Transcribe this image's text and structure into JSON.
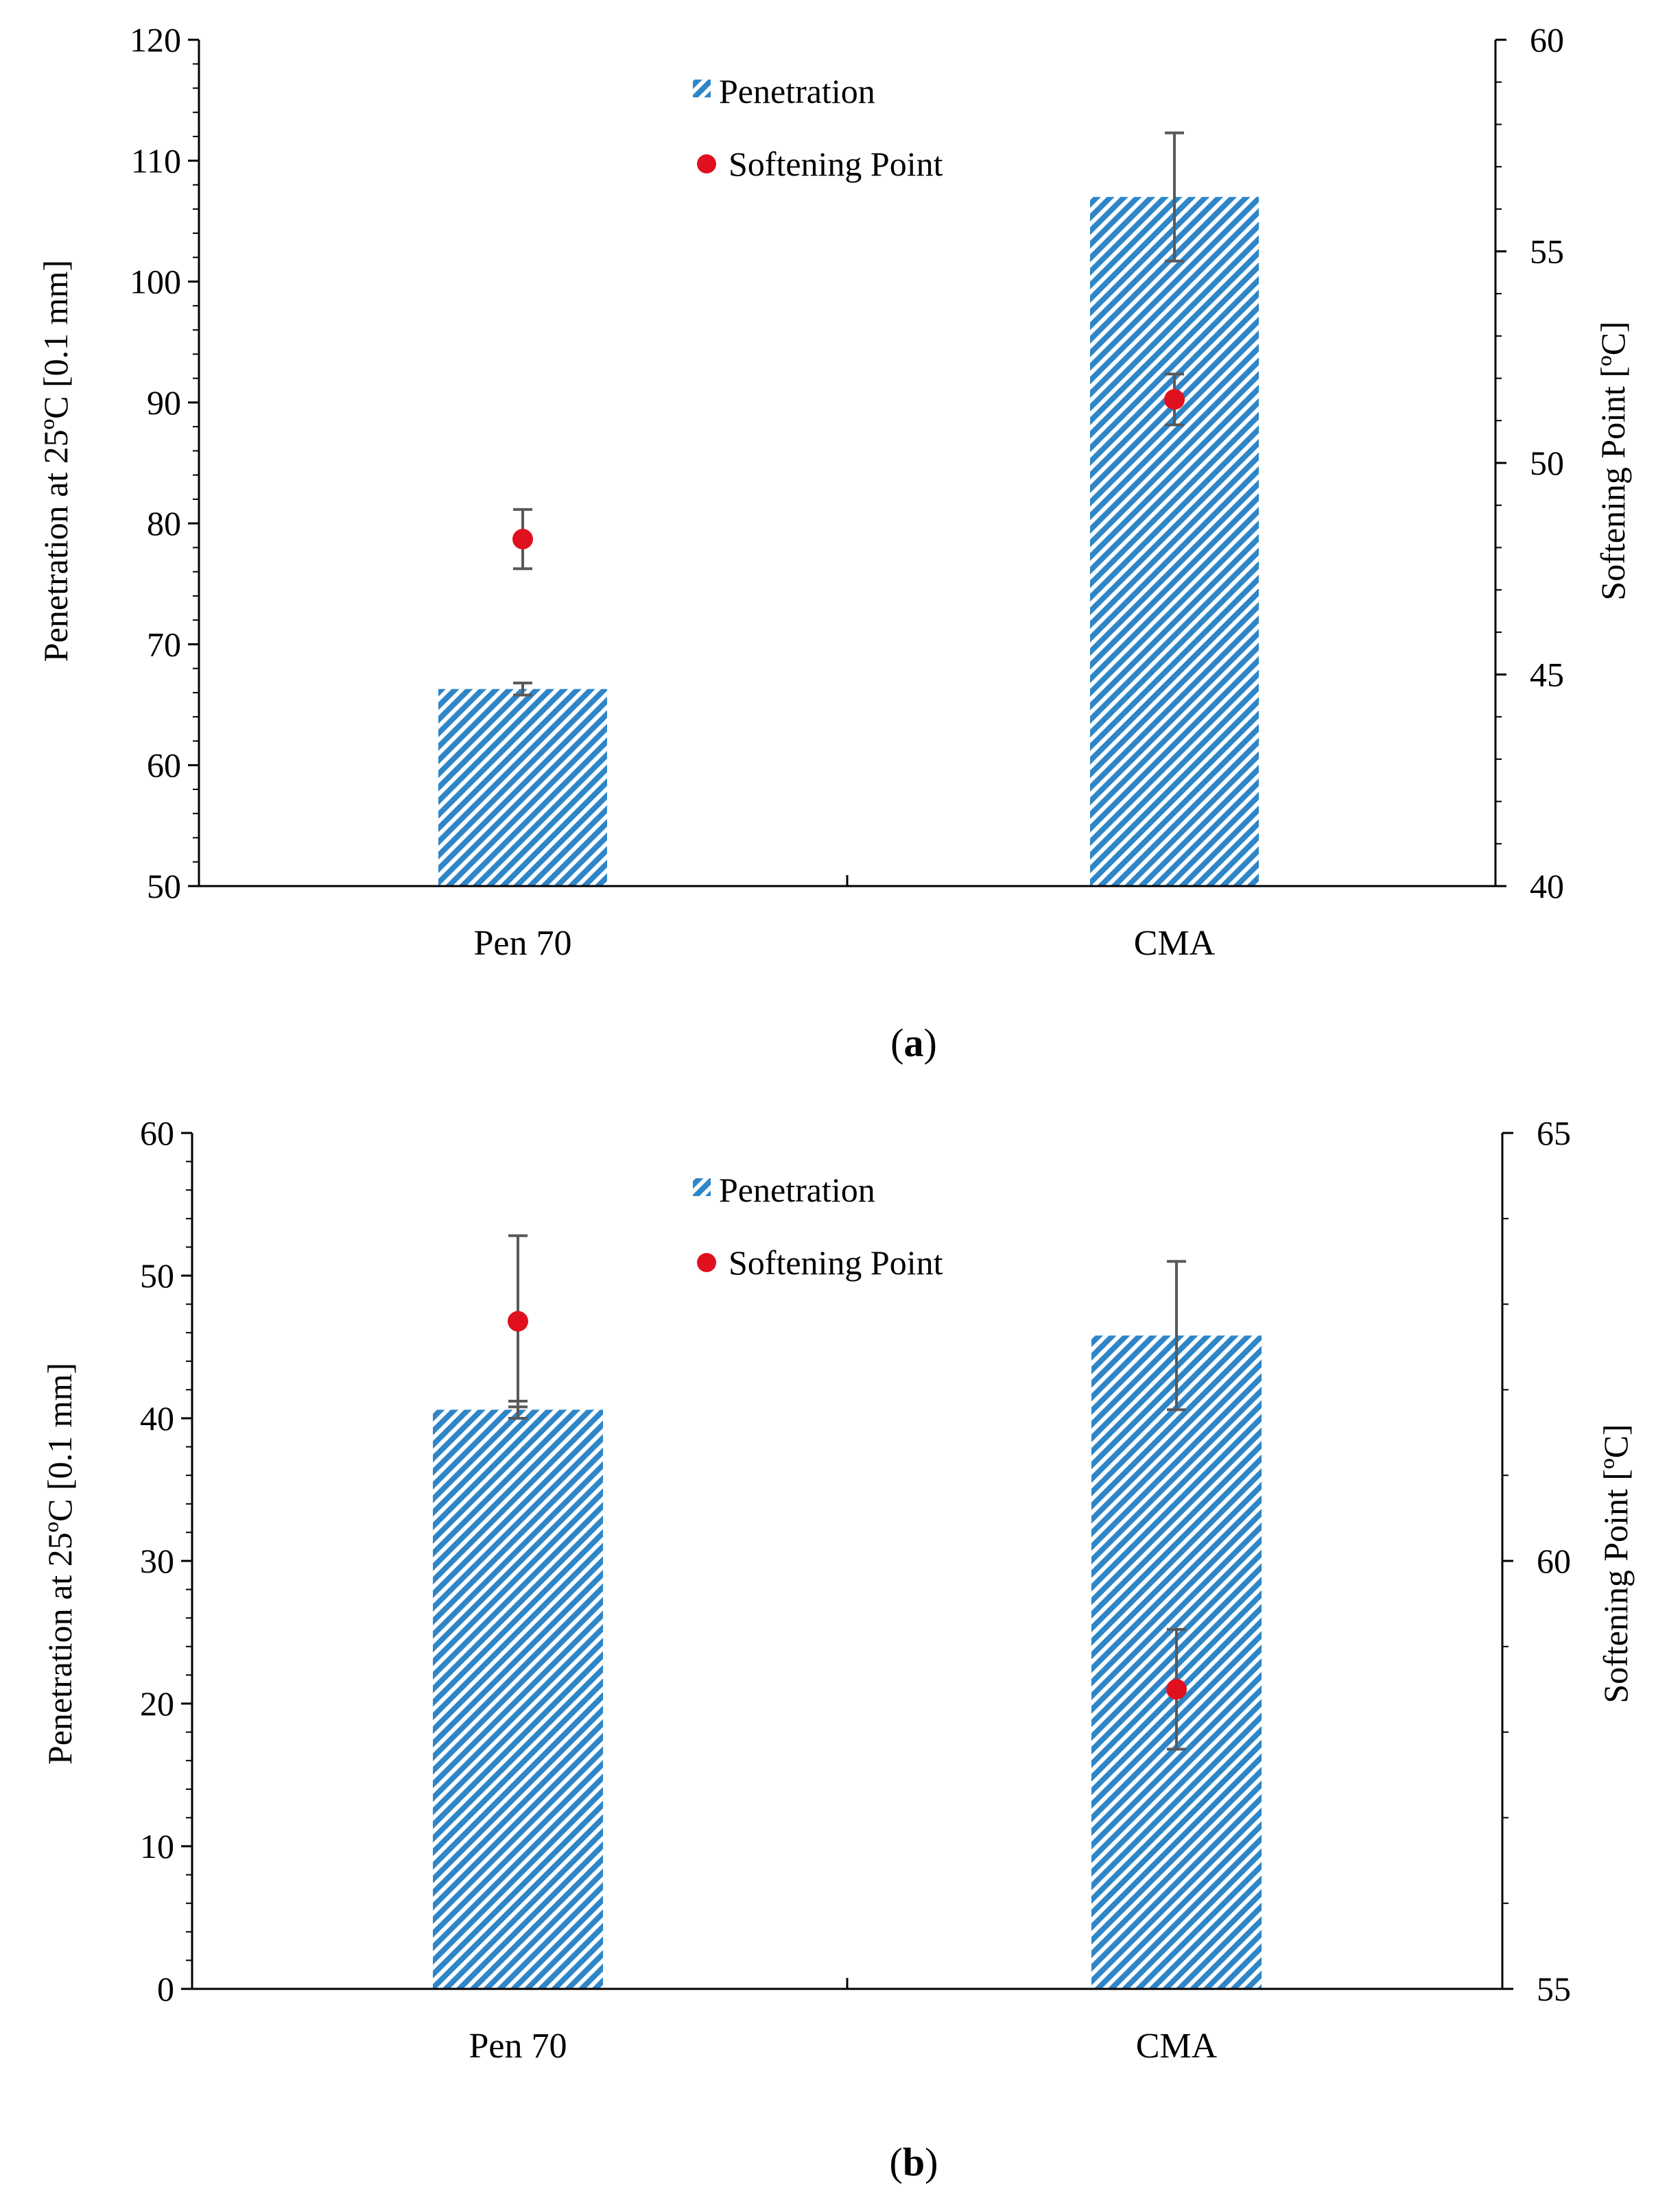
{
  "legend": {
    "penetration": "Penetration",
    "softening": "Softening Point"
  },
  "colors": {
    "bar": "#2e86c8",
    "point": "#e0101e",
    "error_bar": "#595959",
    "axis": "#000000"
  },
  "chart_data": [
    {
      "type": "bar",
      "panel_label": "a",
      "categories": [
        "Pen 70",
        "CMA"
      ],
      "ylabel": "Penetration at 25ºC [0.1 mm]",
      "y2label": "Softening Point [ºC]",
      "ylim": [
        50,
        120
      ],
      "yticks": [
        50,
        60,
        70,
        80,
        90,
        100,
        110,
        120
      ],
      "y2lim": [
        40,
        60
      ],
      "y2ticks": [
        40,
        45,
        50,
        55,
        60
      ],
      "series": [
        {
          "name": "Penetration",
          "kind": "bar",
          "axis": "left",
          "values": [
            66.3,
            107
          ],
          "errors": [
            0.5,
            5.3
          ]
        },
        {
          "name": "Softening Point",
          "kind": "point",
          "axis": "right",
          "values": [
            48.2,
            51.5
          ],
          "errors": [
            0.7,
            0.6
          ]
        }
      ],
      "legend_position": "top-center",
      "grid": false
    },
    {
      "type": "bar",
      "panel_label": "b",
      "categories": [
        "Pen 70",
        "CMA"
      ],
      "ylabel": "Penetration at 25ºC [0.1 mm]",
      "y2label": "Softening Point [ºC]",
      "ylim": [
        0,
        60
      ],
      "yticks": [
        0,
        10,
        20,
        30,
        40,
        50,
        60
      ],
      "y2lim": [
        55,
        65
      ],
      "y2ticks": [
        55,
        60,
        65
      ],
      "series": [
        {
          "name": "Penetration",
          "kind": "bar",
          "axis": "left",
          "values": [
            40.6,
            45.8
          ],
          "errors": [
            0.6,
            5.2
          ]
        },
        {
          "name": "Softening Point",
          "kind": "point",
          "axis": "right",
          "values": [
            62.8,
            58.5
          ],
          "errors": [
            1.0,
            0.7
          ]
        }
      ],
      "legend_position": "top-center",
      "grid": false
    }
  ]
}
